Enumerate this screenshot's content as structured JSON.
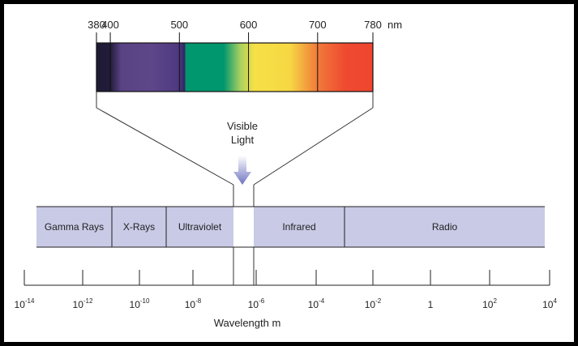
{
  "spectrum": {
    "ticks": [
      "380",
      "400",
      "500",
      "600",
      "700",
      "780"
    ],
    "unit": "nm",
    "colors": {
      "violet_dark": "#1e1a33",
      "violet": "#5e4689",
      "green": "#00966e",
      "yellow": "#f6dd44",
      "orange": "#f05a32",
      "red": "#ef4530"
    }
  },
  "visible_label": [
    "Visible",
    "Light"
  ],
  "arrow_color": "#7f84c8",
  "bands": [
    {
      "label": "Gamma Rays"
    },
    {
      "label": "X-Rays"
    },
    {
      "label": "Ultraviolet"
    },
    {
      "label": ""
    },
    {
      "label": "Infrared"
    },
    {
      "label": "Radio"
    }
  ],
  "band_color": "#c8cae6",
  "axis": {
    "ticks": [
      {
        "base": "10",
        "exp": "-14"
      },
      {
        "base": "10",
        "exp": "-12"
      },
      {
        "base": "10",
        "exp": "-10"
      },
      {
        "base": "10",
        "exp": "-8"
      },
      {
        "base": "10",
        "exp": "-6"
      },
      {
        "base": "10",
        "exp": "-4"
      },
      {
        "base": "10",
        "exp": "-2"
      },
      {
        "base": "1",
        "exp": ""
      },
      {
        "base": "10",
        "exp": "2"
      },
      {
        "base": "10",
        "exp": "4"
      }
    ],
    "label": "Wavelength m"
  }
}
